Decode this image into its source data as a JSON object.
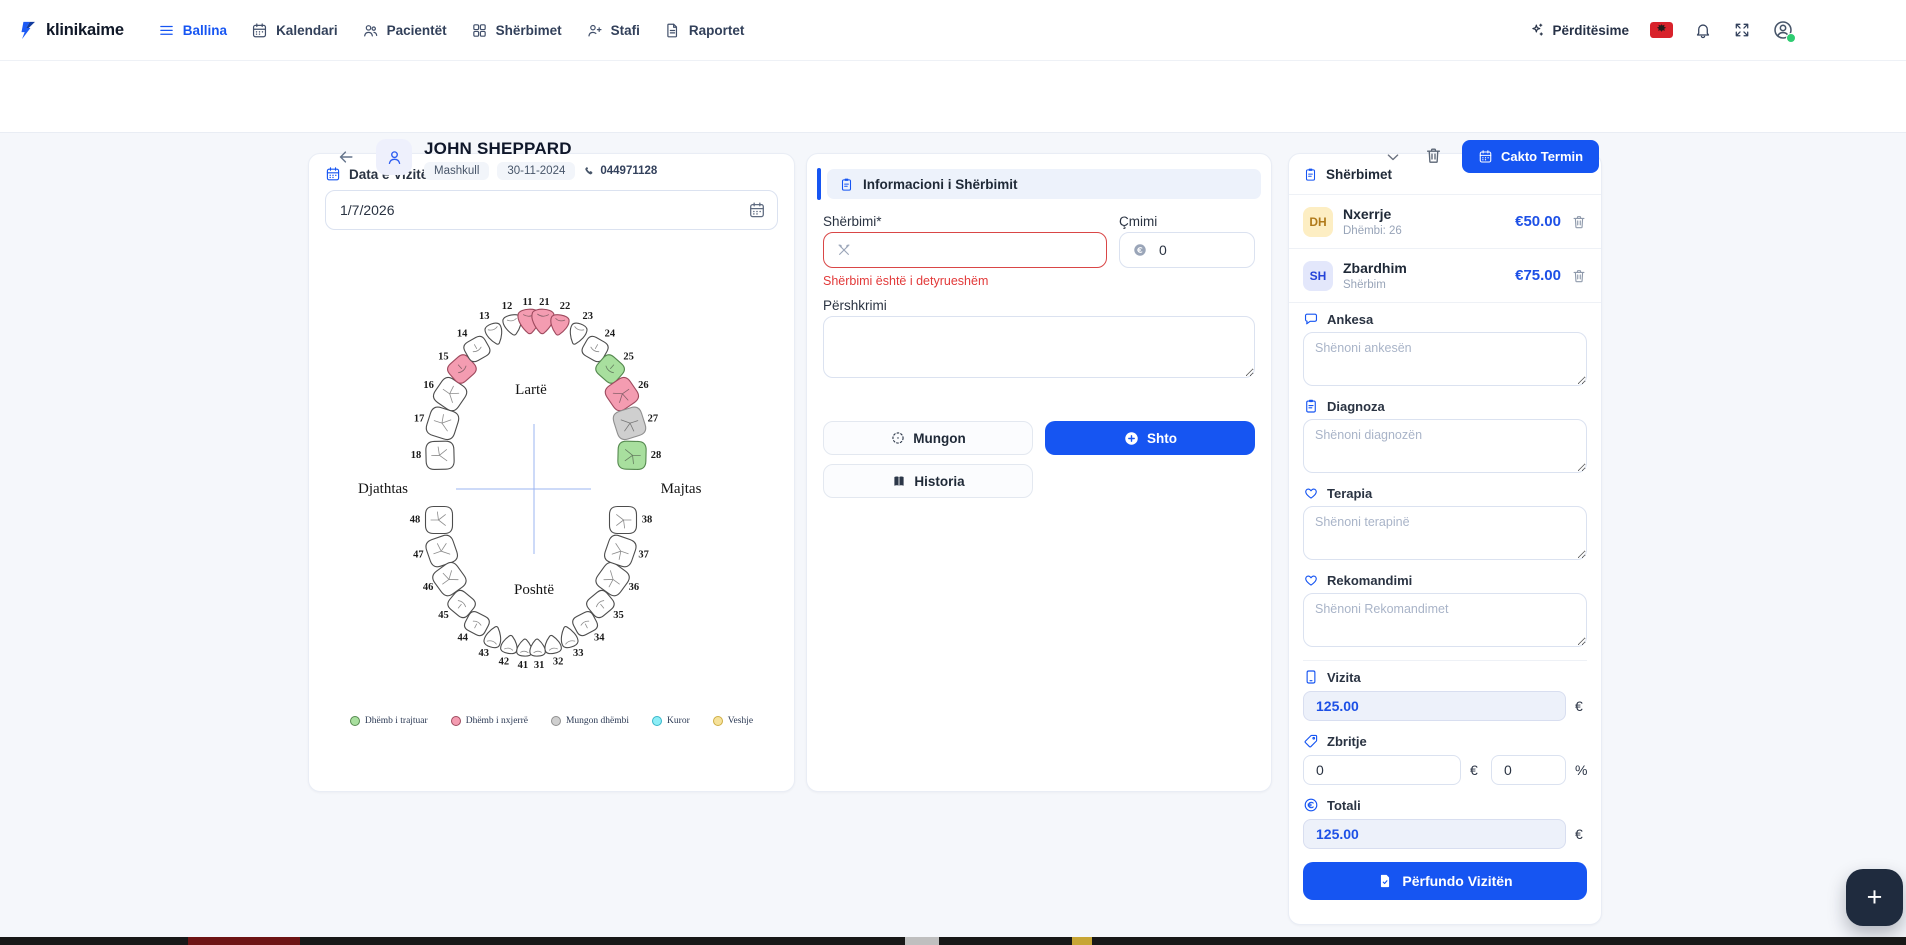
{
  "brand": {
    "name": "klinikaime"
  },
  "colors": {
    "primary": "#1655f2",
    "error": "#e23939",
    "price_blue": "#1d50e6"
  },
  "nav": {
    "items": [
      {
        "id": "ballina",
        "label": "Ballina",
        "icon": "menu",
        "active": true
      },
      {
        "id": "kalendari",
        "label": "Kalendari",
        "icon": "calendar",
        "active": false
      },
      {
        "id": "pacientet",
        "label": "Pacientët",
        "icon": "people",
        "active": false
      },
      {
        "id": "sherbimet",
        "label": "Shërbimet",
        "icon": "grid",
        "active": false
      },
      {
        "id": "stafi",
        "label": "Stafi",
        "icon": "person-plus",
        "active": false
      },
      {
        "id": "raportet",
        "label": "Raportet",
        "icon": "document",
        "active": false
      }
    ],
    "updates_label": "Përditësime"
  },
  "patient": {
    "name": "JOHN SHEPPARD",
    "gender": "Mashkull",
    "birth_date": "30-11-2024",
    "phone": "044971128",
    "appointment_button": "Cakto Termin"
  },
  "visit_date": {
    "label": "Data e Vizitës",
    "value": "1/7/2026"
  },
  "dental_chart": {
    "orientation_labels": {
      "top": "Lartë",
      "bottom": "Poshtë",
      "left": "Djathtas",
      "right": "Majtas"
    },
    "status_colors": {
      "normal": {
        "fill": "#ffffff",
        "stroke": "#4d4d4d"
      },
      "treated": {
        "fill": "#a8df9e",
        "stroke": "#55894f"
      },
      "extracted": {
        "fill": "#f49cb1",
        "stroke": "#9e4a5e"
      },
      "missing": {
        "fill": "#cfcfcf",
        "stroke": "#8f8f8f"
      },
      "crown": {
        "fill": "#8deef7",
        "stroke": "#38b6c9"
      },
      "veneer": {
        "fill": "#f6e29b",
        "stroke": "#cfae45"
      }
    },
    "upper_teeth": [
      {
        "num": 18,
        "status": "normal"
      },
      {
        "num": 17,
        "status": "normal"
      },
      {
        "num": 16,
        "status": "normal"
      },
      {
        "num": 15,
        "status": "extracted"
      },
      {
        "num": 14,
        "status": "normal"
      },
      {
        "num": 13,
        "status": "normal"
      },
      {
        "num": 12,
        "status": "normal"
      },
      {
        "num": 11,
        "status": "extracted"
      },
      {
        "num": 21,
        "status": "extracted"
      },
      {
        "num": 22,
        "status": "extracted"
      },
      {
        "num": 23,
        "status": "normal"
      },
      {
        "num": 24,
        "status": "normal"
      },
      {
        "num": 25,
        "status": "treated"
      },
      {
        "num": 26,
        "status": "extracted"
      },
      {
        "num": 27,
        "status": "missing"
      },
      {
        "num": 28,
        "status": "treated"
      }
    ],
    "lower_teeth": [
      {
        "num": 48,
        "status": "normal"
      },
      {
        "num": 47,
        "status": "normal"
      },
      {
        "num": 46,
        "status": "normal"
      },
      {
        "num": 45,
        "status": "normal"
      },
      {
        "num": 44,
        "status": "normal"
      },
      {
        "num": 43,
        "status": "normal"
      },
      {
        "num": 42,
        "status": "normal"
      },
      {
        "num": 41,
        "status": "normal"
      },
      {
        "num": 31,
        "status": "normal"
      },
      {
        "num": 32,
        "status": "normal"
      },
      {
        "num": 33,
        "status": "normal"
      },
      {
        "num": 34,
        "status": "normal"
      },
      {
        "num": 35,
        "status": "normal"
      },
      {
        "num": 36,
        "status": "normal"
      },
      {
        "num": 37,
        "status": "normal"
      },
      {
        "num": 38,
        "status": "normal"
      }
    ],
    "legend": [
      {
        "label": "Dhëmb i trajtuar",
        "status": "treated"
      },
      {
        "label": "Dhëmb i nxjerrë",
        "status": "extracted"
      },
      {
        "label": "Mungon dhëmbi",
        "status": "missing"
      },
      {
        "label": "Kuror",
        "status": "crown"
      },
      {
        "label": "Veshje",
        "status": "veneer"
      }
    ]
  },
  "service_form": {
    "header": "Informacioni i Shërbimit",
    "service_label": "Shërbimi*",
    "price_label": "Çmimi",
    "price_value": "0",
    "error_message": "Shërbimi është i detyrueshëm",
    "description_label": "Përshkrimi",
    "missing_button": "Mungon",
    "add_button": "Shto",
    "history_button": "Historia"
  },
  "services_panel": {
    "header": "Shërbimet",
    "items": [
      {
        "badge": "DH",
        "badge_bg": "#fdeec3",
        "badge_color": "#b07a1a",
        "name": "Nxerrje",
        "detail": "Dhëmbi: 26",
        "price": "€50.00"
      },
      {
        "badge": "SH",
        "badge_bg": "#e3e7fb",
        "badge_color": "#2544d9",
        "name": "Zbardhim",
        "detail": "Shërbim",
        "price": "€75.00"
      }
    ],
    "note_sections": [
      {
        "id": "ankesa",
        "label": "Ankesa",
        "icon": "chat",
        "placeholder": "Shënoni ankesën"
      },
      {
        "id": "diagnoza",
        "label": "Diagnoza",
        "icon": "clipboard",
        "placeholder": "Shënoni diagnozën"
      },
      {
        "id": "terapia",
        "label": "Terapia",
        "icon": "heart",
        "placeholder": "Shënoni terapinë"
      },
      {
        "id": "rekomandimi",
        "label": "Rekomandimi",
        "icon": "heart",
        "placeholder": "Shënoni Rekomandimet"
      }
    ],
    "visit": {
      "label": "Vizita",
      "value": "125.00",
      "suffix": "€"
    },
    "discount": {
      "label": "Zbritje",
      "amount": "0",
      "amount_suffix": "€",
      "percent": "0",
      "percent_suffix": "%"
    },
    "total": {
      "label": "Totali",
      "value": "125.00",
      "suffix": "€"
    },
    "finish_button": "Përfundo Vizitën"
  },
  "fab": {
    "label": "+"
  }
}
